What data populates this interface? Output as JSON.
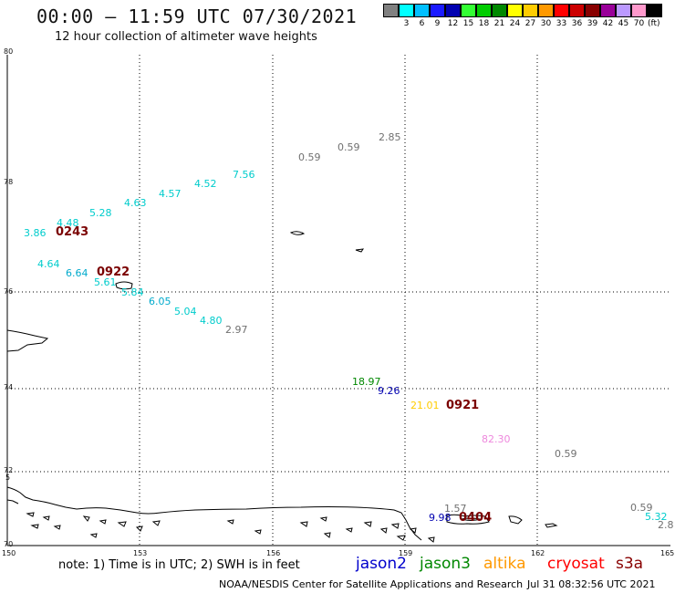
{
  "header": {
    "title": "00:00 – 11:59 UTC 07/30/2021",
    "subtitle": "12 hour collection of altimeter wave heights"
  },
  "legend": {
    "unit": "(ft)",
    "steps": [
      {
        "label": "",
        "color": "#808080"
      },
      {
        "label": "3",
        "color": "#00ffff"
      },
      {
        "label": "6",
        "color": "#00bfff"
      },
      {
        "label": "9",
        "color": "#1a1aff"
      },
      {
        "label": "12",
        "color": "#0000b0"
      },
      {
        "label": "15",
        "color": "#33ff33"
      },
      {
        "label": "18",
        "color": "#00cc00"
      },
      {
        "label": "21",
        "color": "#008800"
      },
      {
        "label": "24",
        "color": "#ffff00"
      },
      {
        "label": "27",
        "color": "#ffcc00"
      },
      {
        "label": "30",
        "color": "#ff9900"
      },
      {
        "label": "33",
        "color": "#ff0000"
      },
      {
        "label": "36",
        "color": "#cc0000"
      },
      {
        "label": "39",
        "color": "#880000"
      },
      {
        "label": "42",
        "color": "#990099"
      },
      {
        "label": "45",
        "color": "#bb99ff"
      },
      {
        "label": "70",
        "color": "#ff99cc"
      },
      {
        "label": "",
        "color": "#000000"
      }
    ]
  },
  "axes": {
    "lon_labels": [
      "150",
      "153",
      "156",
      "159",
      "162",
      "165"
    ],
    "lat_labels": [
      "80",
      "78",
      "76",
      "74",
      "72",
      "70"
    ],
    "lat_extra": "5"
  },
  "measurements": [
    {
      "value": "2.85",
      "color": "#707070"
    },
    {
      "value": "0.59",
      "color": "#707070"
    },
    {
      "value": "0.59",
      "color": "#707070"
    },
    {
      "value": "7.56",
      "color": "#00cccc"
    },
    {
      "value": "4.52",
      "color": "#00cccc"
    },
    {
      "value": "4.57",
      "color": "#00cccc"
    },
    {
      "value": "4.63",
      "color": "#00cccc"
    },
    {
      "value": "5.28",
      "color": "#00cccc"
    },
    {
      "value": "4.48",
      "color": "#00cccc"
    },
    {
      "value": "3.86",
      "color": "#00cccc"
    },
    {
      "value": "4.64",
      "color": "#00cccc"
    },
    {
      "value": "6.64",
      "color": "#00aacc"
    },
    {
      "value": "5.61",
      "color": "#00cccc"
    },
    {
      "value": "5.84",
      "color": "#00cccc"
    },
    {
      "value": "6.05",
      "color": "#00aacc"
    },
    {
      "value": "5.04",
      "color": "#00cccc"
    },
    {
      "value": "4.80",
      "color": "#00cccc"
    },
    {
      "value": "2.97",
      "color": "#707070"
    },
    {
      "value": "18.97",
      "color": "#008800"
    },
    {
      "value": "9.26",
      "color": "#0000b0"
    },
    {
      "value": "21.01",
      "color": "#ffcc00"
    },
    {
      "value": "82.30",
      "color": "#ee88dd"
    },
    {
      "value": "0.59",
      "color": "#707070"
    },
    {
      "value": "1.57",
      "color": "#707070"
    },
    {
      "value": "9.98",
      "color": "#0000b0"
    },
    {
      "value": "0.59",
      "color": "#707070"
    },
    {
      "value": "5.32",
      "color": "#00cccc"
    },
    {
      "value": "2.8",
      "color": "#707070"
    }
  ],
  "times": [
    "0243",
    "0922",
    "0921",
    "0404"
  ],
  "note": "note: 1) Time is in UTC; 2) SWH is in feet",
  "satellites": [
    {
      "name": "jason2",
      "color": "#0000cc"
    },
    {
      "name": "jason3",
      "color": "#008800"
    },
    {
      "name": "altika",
      "color": "#ff9900"
    },
    {
      "name": "cryosat",
      "color": "#ff0000"
    },
    {
      "name": "s3a",
      "color": "#880000"
    }
  ],
  "footer": "NOAA/NESDIS Center for Satellite Applications and Research",
  "timestamp": "Jul 31 08:32:56 UTC 2021"
}
